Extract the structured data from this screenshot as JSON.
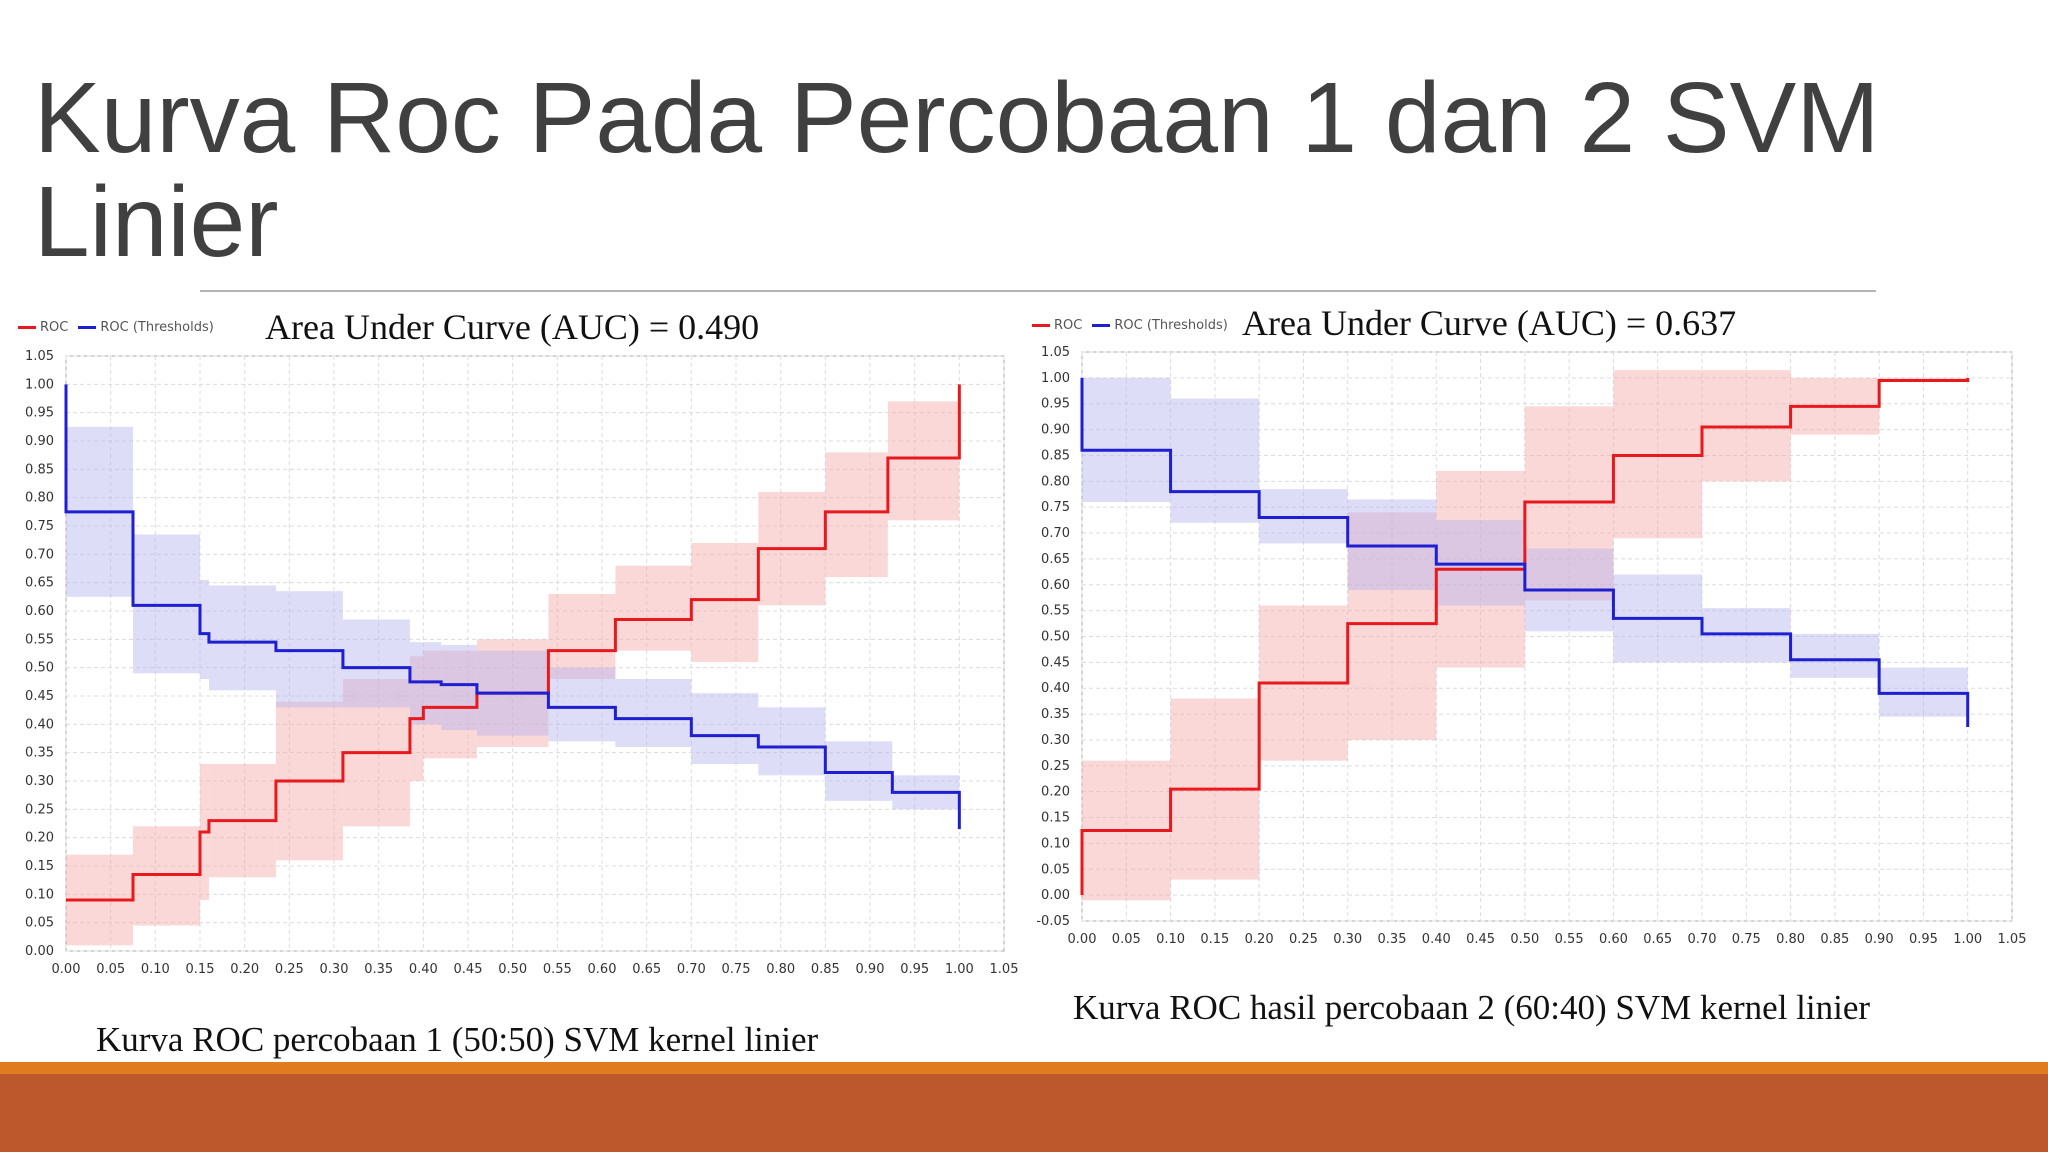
{
  "slide": {
    "title": "Kurva Roc Pada Percobaan 1 dan 2 SVM Linier",
    "colors": {
      "title": "#404040",
      "rule": "#b5b5b5",
      "footer_light": "#e07b20",
      "footer_dark": "#bd582c"
    }
  },
  "chart_data": [
    {
      "type": "line",
      "annotation": "Area Under Curve (AUC) = 0.490",
      "caption": "Kurva ROC percobaan 1 (50:50) SVM kernel linier",
      "legend": [
        "ROC",
        "ROC (Thresholds)"
      ],
      "legend_placement": "top-left",
      "grid": true,
      "xlim": [
        0,
        1.05
      ],
      "ylim": [
        0,
        1.05
      ],
      "x_ticks": [
        "0.00",
        "0.05",
        "0.10",
        "0.15",
        "0.20",
        "0.25",
        "0.30",
        "0.35",
        "0.40",
        "0.45",
        "0.50",
        "0.55",
        "0.60",
        "0.65",
        "0.70",
        "0.75",
        "0.80",
        "0.85",
        "0.90",
        "0.95",
        "1.00",
        "1.05"
      ],
      "y_ticks": [
        "0.00",
        "0.05",
        "0.10",
        "0.15",
        "0.20",
        "0.25",
        "0.30",
        "0.35",
        "0.40",
        "0.45",
        "0.50",
        "0.55",
        "0.60",
        "0.65",
        "0.70",
        "0.75",
        "0.80",
        "0.85",
        "0.90",
        "0.95",
        "1.00",
        "1.05"
      ],
      "series": [
        {
          "name": "ROC",
          "color": "#e8191c",
          "band_color": "#f7a8a8",
          "x": [
            0.0,
            0.075,
            0.15,
            0.16,
            0.235,
            0.31,
            0.385,
            0.4,
            0.46,
            0.54,
            0.615,
            0.7,
            0.775,
            0.85,
            0.92,
            1.0
          ],
          "y": [
            0.09,
            0.135,
            0.21,
            0.23,
            0.3,
            0.35,
            0.41,
            0.43,
            0.455,
            0.53,
            0.585,
            0.62,
            0.71,
            0.775,
            0.87,
            0.91
          ],
          "band_low": [
            0.01,
            0.045,
            0.09,
            0.13,
            0.16,
            0.22,
            0.3,
            0.34,
            0.36,
            0.48,
            0.53,
            0.51,
            0.61,
            0.66,
            0.76,
            0.835
          ],
          "band_high": [
            0.17,
            0.22,
            0.33,
            0.33,
            0.44,
            0.48,
            0.52,
            0.53,
            0.55,
            0.63,
            0.68,
            0.72,
            0.81,
            0.88,
            0.97,
            0.99
          ],
          "end_y": 1.0
        },
        {
          "name": "ROC (Thresholds)",
          "color": "#1f1fd2",
          "band_color": "#b3b3ee",
          "x": [
            0.0,
            0.075,
            0.15,
            0.16,
            0.235,
            0.31,
            0.385,
            0.42,
            0.46,
            0.54,
            0.615,
            0.7,
            0.775,
            0.85,
            0.925,
            1.0
          ],
          "y": [
            0.775,
            0.61,
            0.56,
            0.545,
            0.53,
            0.5,
            0.475,
            0.47,
            0.455,
            0.43,
            0.41,
            0.38,
            0.36,
            0.315,
            0.28,
            0.28
          ],
          "band_low": [
            0.625,
            0.49,
            0.48,
            0.46,
            0.43,
            0.43,
            0.4,
            0.39,
            0.38,
            0.37,
            0.36,
            0.33,
            0.31,
            0.265,
            0.25,
            0.25
          ],
          "band_high": [
            0.925,
            0.735,
            0.655,
            0.645,
            0.635,
            0.585,
            0.545,
            0.54,
            0.53,
            0.5,
            0.48,
            0.455,
            0.43,
            0.37,
            0.31,
            0.31
          ],
          "start_y": 1.0,
          "end_y": 0.215
        }
      ]
    },
    {
      "type": "line",
      "annotation": "Area Under Curve (AUC) = 0.637",
      "caption": "Kurva ROC hasil percobaan 2 (60:40) SVM kernel linier",
      "legend": [
        "ROC",
        "ROC (Thresholds)"
      ],
      "legend_placement": "top-left",
      "grid": true,
      "xlim": [
        0,
        1.05
      ],
      "ylim": [
        -0.05,
        1.05
      ],
      "x_ticks": [
        "0.00",
        "0.05",
        "0.10",
        "0.15",
        "0.20",
        "0.25",
        "0.30",
        "0.35",
        "0.40",
        "0.45",
        "0.50",
        "0.55",
        "0.60",
        "0.65",
        "0.70",
        "0.75",
        "0.80",
        "0.85",
        "0.90",
        "0.95",
        "1.00",
        "1.05"
      ],
      "y_ticks": [
        "-0.05",
        "0.00",
        "0.05",
        "0.10",
        "0.15",
        "0.20",
        "0.25",
        "0.30",
        "0.35",
        "0.40",
        "0.45",
        "0.50",
        "0.55",
        "0.60",
        "0.65",
        "0.70",
        "0.75",
        "0.80",
        "0.85",
        "0.90",
        "0.95",
        "1.00",
        "1.05"
      ],
      "series": [
        {
          "name": "ROC",
          "color": "#e8191c",
          "band_color": "#f7a8a8",
          "x": [
            0.0,
            0.1,
            0.2,
            0.3,
            0.4,
            0.5,
            0.6,
            0.7,
            0.8,
            0.9,
            1.0
          ],
          "y": [
            0.125,
            0.205,
            0.41,
            0.525,
            0.63,
            0.76,
            0.85,
            0.905,
            0.945,
            0.995,
            1.0
          ],
          "band_low": [
            -0.01,
            0.03,
            0.26,
            0.3,
            0.44,
            0.57,
            0.69,
            0.8,
            0.89,
            0.995,
            1.0
          ],
          "band_high": [
            0.26,
            0.38,
            0.56,
            0.74,
            0.82,
            0.945,
            1.015,
            1.015,
            1.0,
            1.0,
            1.0
          ],
          "start_y": 0.0
        },
        {
          "name": "ROC (Thresholds)",
          "color": "#1f1fd2",
          "band_color": "#b3b3ee",
          "x": [
            0.0,
            0.1,
            0.2,
            0.3,
            0.4,
            0.5,
            0.6,
            0.7,
            0.8,
            0.9,
            1.0
          ],
          "y": [
            0.86,
            0.78,
            0.73,
            0.675,
            0.64,
            0.59,
            0.535,
            0.505,
            0.455,
            0.39,
            0.39
          ],
          "band_low": [
            0.76,
            0.72,
            0.68,
            0.59,
            0.56,
            0.51,
            0.45,
            0.45,
            0.42,
            0.345,
            0.345
          ],
          "band_high": [
            1.0,
            0.96,
            0.785,
            0.765,
            0.725,
            0.67,
            0.62,
            0.555,
            0.505,
            0.44,
            0.44
          ],
          "start_y": 1.0,
          "end_y": 0.325
        }
      ]
    }
  ]
}
